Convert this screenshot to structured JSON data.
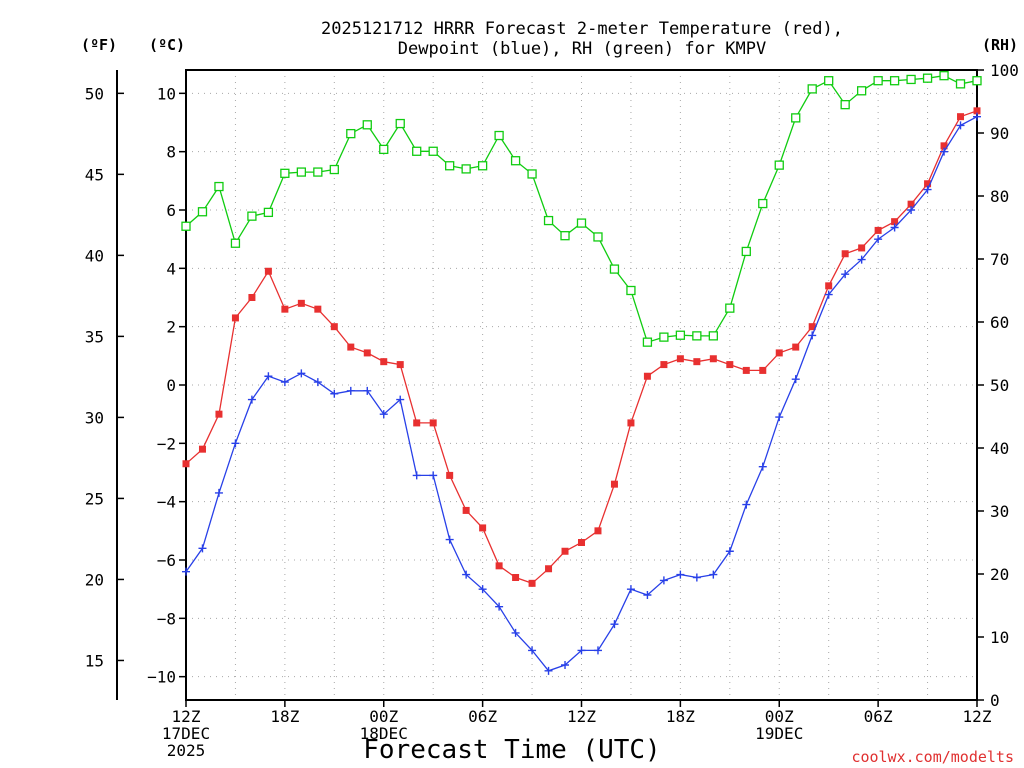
{
  "chart_data": {
    "type": "line",
    "title_line1": "2025121712 HRRR Forecast 2-meter Temperature (red),",
    "title_line2": "Dewpoint (blue), RH (green) for KMPV",
    "xlabel": "Forecast Time (UTC)",
    "credit": "coolwx.com/modelts",
    "unit_f": "(ºF)",
    "unit_c": "(ºC)",
    "unit_rh": "(RH)",
    "x_range": [
      0,
      48
    ],
    "ylim_c": [
      -10.8,
      10.8
    ],
    "ylim_rh": [
      0,
      100
    ],
    "f_ticks": [
      15,
      20,
      25,
      30,
      35,
      40,
      45,
      50
    ],
    "c_ticks": [
      -10,
      -8,
      -6,
      -4,
      -2,
      0,
      2,
      4,
      6,
      8,
      10
    ],
    "c_tick_labels": [
      "−10",
      "−8",
      "−6",
      "−4",
      "−2",
      "0",
      "2",
      "4",
      "6",
      "8",
      "10"
    ],
    "rh_ticks": [
      0,
      10,
      20,
      30,
      40,
      50,
      60,
      70,
      80,
      90,
      100
    ],
    "x_ticks": [
      {
        "h": 0,
        "lines": [
          "12Z",
          "17DEC",
          "2025"
        ]
      },
      {
        "h": 6,
        "lines": [
          "18Z"
        ]
      },
      {
        "h": 12,
        "lines": [
          "00Z",
          "18DEC"
        ]
      },
      {
        "h": 18,
        "lines": [
          "06Z"
        ]
      },
      {
        "h": 24,
        "lines": [
          "12Z"
        ]
      },
      {
        "h": 30,
        "lines": [
          "18Z"
        ]
      },
      {
        "h": 36,
        "lines": [
          "00Z",
          "19DEC"
        ]
      },
      {
        "h": 42,
        "lines": [
          "06Z"
        ]
      },
      {
        "h": 48,
        "lines": [
          "12Z"
        ]
      }
    ],
    "series": [
      {
        "name": "Temperature (°C)",
        "color": "#e83030",
        "marker": "filled-square",
        "axis": "c",
        "values": [
          -2.7,
          -2.2,
          -1.0,
          2.3,
          3.0,
          3.9,
          2.6,
          2.8,
          2.6,
          2.0,
          1.3,
          1.1,
          0.8,
          0.7,
          -1.3,
          -1.3,
          -3.1,
          -4.3,
          -4.9,
          -6.2,
          -6.6,
          -6.8,
          -6.3,
          -5.7,
          -5.4,
          -5.0,
          -3.4,
          -1.3,
          0.3,
          0.7,
          0.9,
          0.8,
          0.9,
          0.7,
          0.5,
          0.5,
          1.1,
          1.3,
          2.0,
          3.4,
          4.5,
          4.7,
          5.3,
          5.6,
          6.2,
          6.9,
          8.2,
          9.2,
          9.4
        ]
      },
      {
        "name": "Dewpoint (°C)",
        "color": "#2840e8",
        "marker": "plus",
        "axis": "c",
        "values": [
          -6.4,
          -5.6,
          -3.7,
          -2.0,
          -0.5,
          0.3,
          0.1,
          0.4,
          0.1,
          -0.3,
          -0.2,
          -0.2,
          -1.0,
          -0.5,
          -3.1,
          -3.1,
          -5.3,
          -6.5,
          -7.0,
          -7.6,
          -8.5,
          -9.1,
          -9.8,
          -9.6,
          -9.1,
          -9.1,
          -8.2,
          -7.0,
          -7.2,
          -6.7,
          -6.5,
          -6.6,
          -6.5,
          -5.7,
          -4.1,
          -2.8,
          -1.1,
          0.2,
          1.7,
          3.1,
          3.8,
          4.3,
          5.0,
          5.4,
          6.0,
          6.7,
          8.0,
          8.9,
          9.2
        ]
      },
      {
        "name": "RH (%)",
        "color": "#10cc10",
        "marker": "open-square",
        "axis": "rh",
        "values": [
          75.2,
          77.5,
          81.5,
          72.5,
          76.8,
          77.4,
          83.6,
          83.8,
          83.8,
          84.2,
          89.9,
          91.3,
          87.4,
          91.5,
          87.1,
          87.1,
          84.8,
          84.3,
          84.8,
          89.6,
          85.6,
          83.5,
          76.1,
          73.7,
          75.7,
          73.5,
          68.4,
          65.0,
          56.8,
          57.6,
          57.9,
          57.8,
          57.8,
          62.2,
          71.2,
          78.8,
          84.9,
          92.4,
          97.0,
          98.3,
          94.5,
          96.7,
          98.3,
          98.3,
          98.5,
          98.7,
          99.1,
          97.8,
          98.3
        ]
      }
    ]
  }
}
